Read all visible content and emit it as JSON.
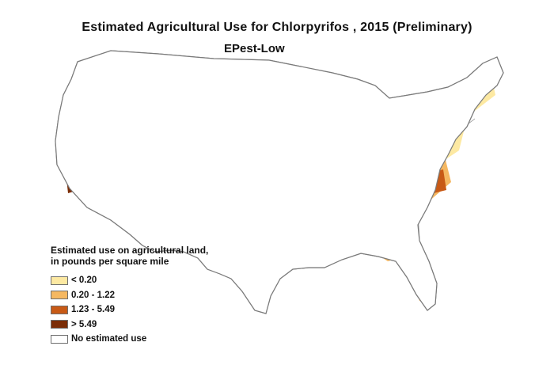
{
  "map": {
    "title": "Estimated Agricultural Use for Chlorpyrifos , 2015 (Preliminary)",
    "subtitle": "EPest-Low",
    "region": "conterminous United States",
    "colors": {
      "outline": "#7a7a7a",
      "state_border": "#a0a0a0",
      "land": "#ffffff"
    }
  },
  "legend": {
    "title": "Estimated use on agricultural land, in pounds per square mile",
    "items": [
      {
        "label": "< 0.20",
        "color": "#fde9a2"
      },
      {
        "label": "0.20 - 1.22",
        "color": "#f5b862"
      },
      {
        "label": "1.23 - 5.49",
        "color": "#c85a16"
      },
      {
        "label": "> 5.49",
        "color": "#7b2d07"
      },
      {
        "label": "No estimated use",
        "color": "#ffffff"
      }
    ]
  }
}
